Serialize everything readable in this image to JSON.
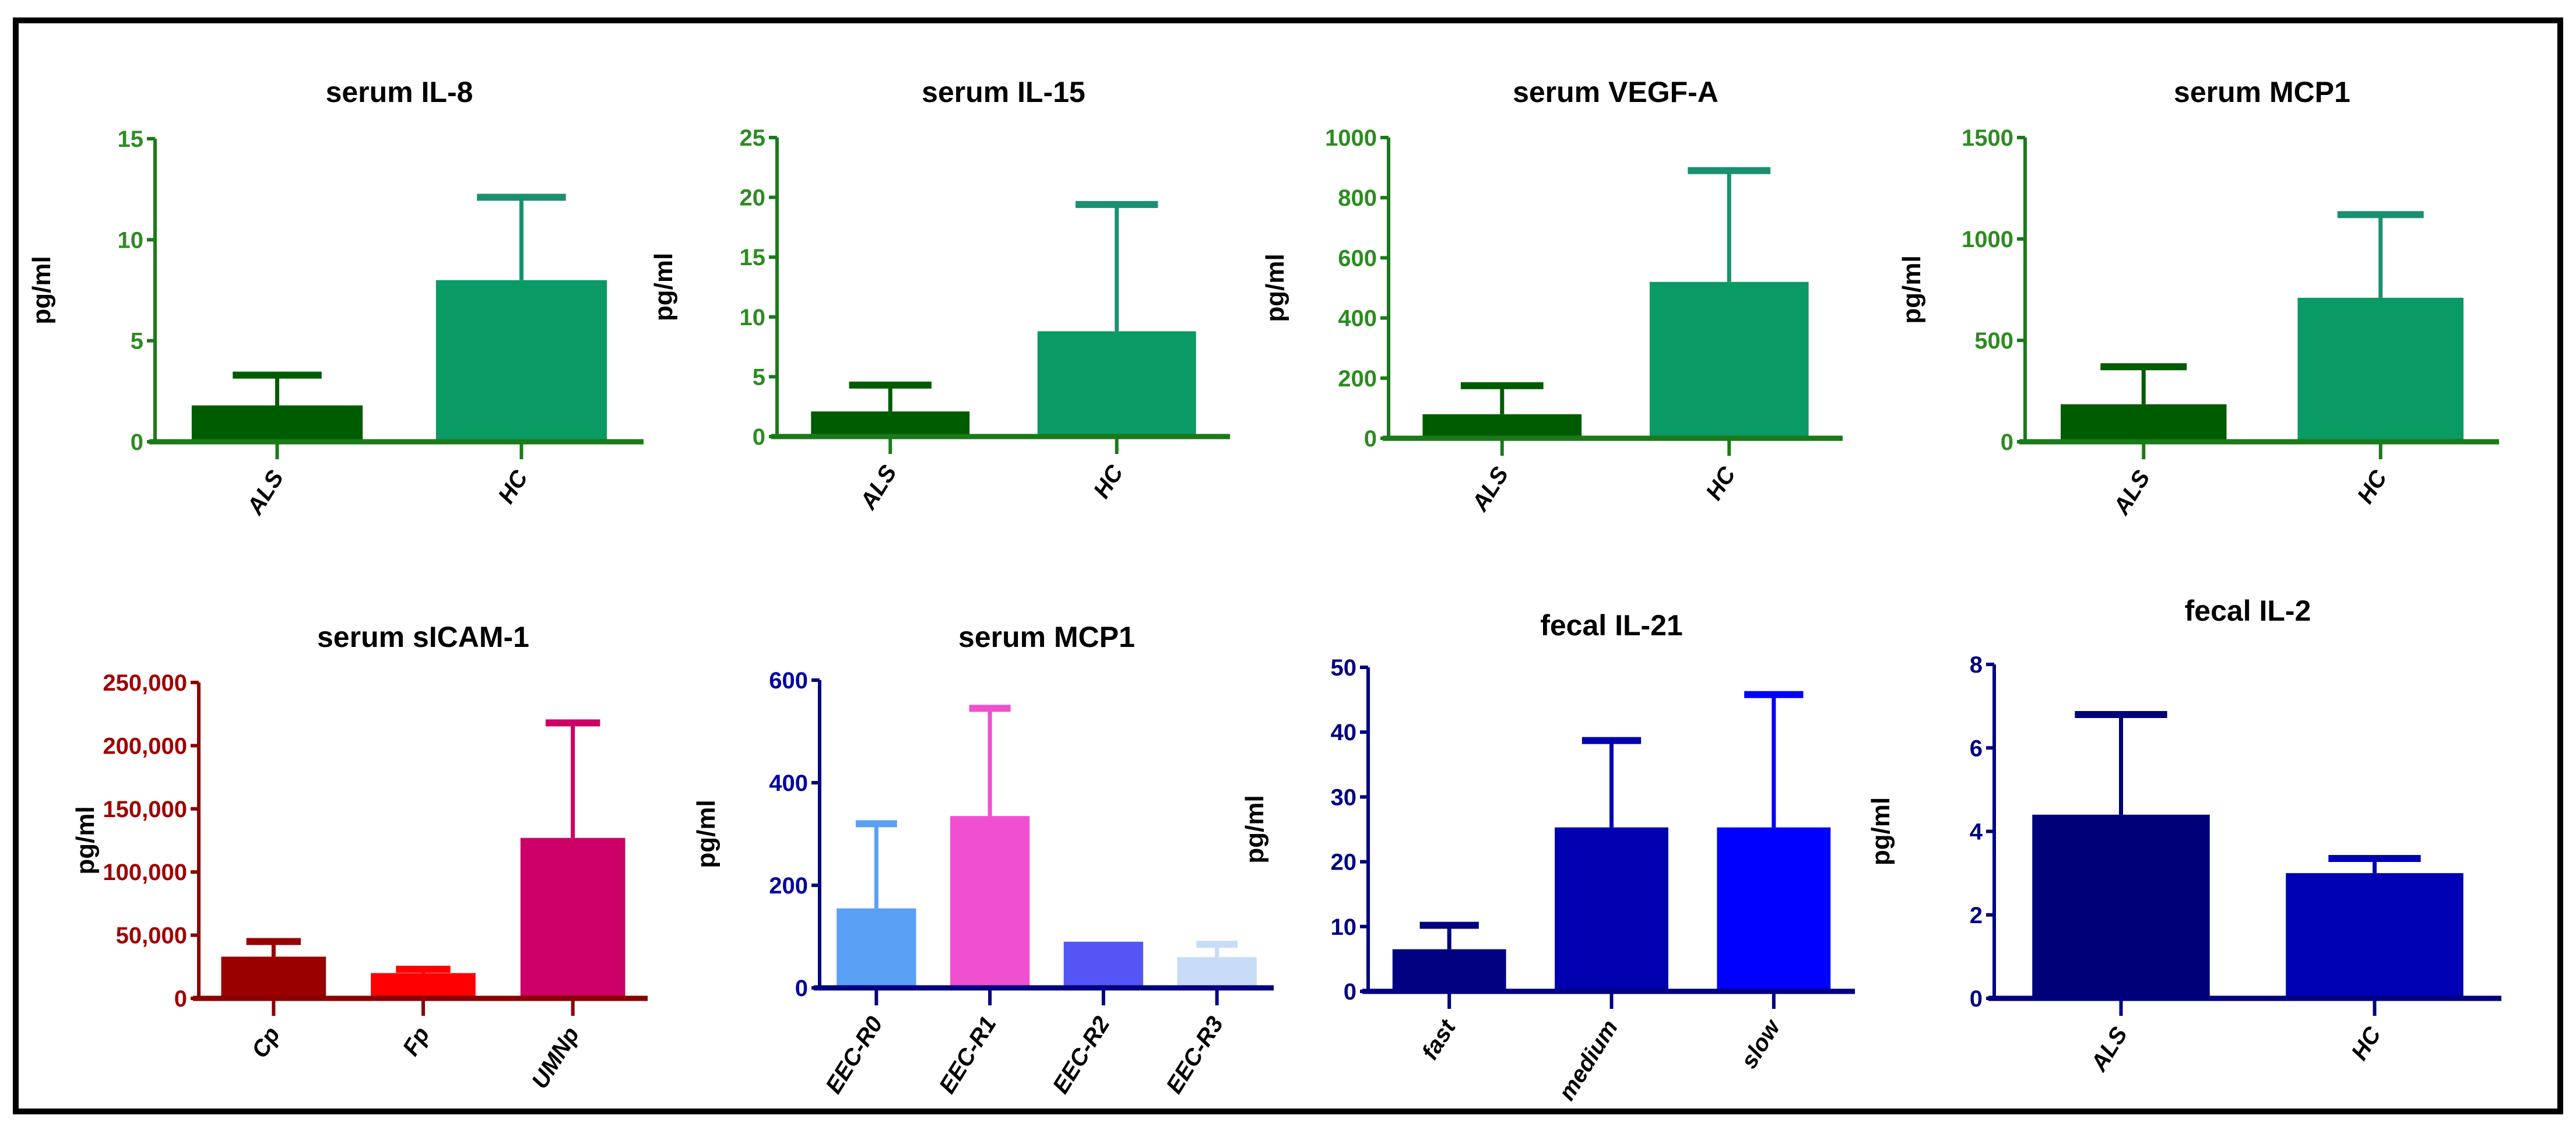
{
  "chart_data": [
    {
      "type": "bar",
      "title": "serum IL-8",
      "ylabel": "pg/ml",
      "ylim": [
        0,
        15
      ],
      "yticks": [
        0,
        5,
        10,
        15
      ],
      "axis_color": "#1a7a1a",
      "tick_label_color": "#2e8b22",
      "categories": [
        "ALS",
        "HC"
      ],
      "values": [
        1.8,
        8.0
      ],
      "error_upper": [
        3.3,
        12.1
      ],
      "colors": [
        "#005c00",
        "#0a9a64"
      ],
      "error_colors": [
        "#005c00",
        "#1a9070"
      ]
    },
    {
      "type": "bar",
      "title": "serum IL-15",
      "ylabel": "pg/ml",
      "ylim": [
        0,
        25
      ],
      "yticks": [
        0,
        5,
        10,
        15,
        20,
        25
      ],
      "axis_color": "#1a7a1a",
      "tick_label_color": "#2e8b22",
      "categories": [
        "ALS",
        "HC"
      ],
      "values": [
        2.1,
        8.8
      ],
      "error_upper": [
        4.3,
        19.4
      ],
      "colors": [
        "#005c00",
        "#0a9a64"
      ],
      "error_colors": [
        "#005c00",
        "#1a9070"
      ]
    },
    {
      "type": "bar",
      "title": "serum VEGF-A",
      "ylabel": "pg/ml",
      "ylim": [
        0,
        1000
      ],
      "yticks": [
        0,
        200,
        400,
        600,
        800,
        1000
      ],
      "axis_color": "#1a7a1a",
      "tick_label_color": "#2e8b22",
      "categories": [
        "ALS",
        "HC"
      ],
      "values": [
        80,
        520
      ],
      "error_upper": [
        175,
        890
      ],
      "colors": [
        "#005c00",
        "#0a9a64"
      ],
      "error_colors": [
        "#005c00",
        "#1a9070"
      ]
    },
    {
      "type": "bar",
      "title": "serum MCP1",
      "ylabel": "pg/ml",
      "ylim": [
        0,
        1500
      ],
      "yticks": [
        0,
        500,
        1000,
        1500
      ],
      "axis_color": "#1a7a1a",
      "tick_label_color": "#2e8b22",
      "categories": [
        "ALS",
        "HC"
      ],
      "values": [
        185,
        710
      ],
      "error_upper": [
        370,
        1120
      ],
      "colors": [
        "#005c00",
        "#0a9a64"
      ],
      "error_colors": [
        "#005c00",
        "#1a9070"
      ]
    },
    {
      "type": "bar",
      "title": "serum sICAM-1",
      "ylabel": "pg/ml",
      "ylim": [
        0,
        250000
      ],
      "yticks": [
        0,
        50000,
        100000,
        150000,
        200000,
        250000
      ],
      "ytick_labels": [
        "0",
        "50,000",
        "100,000",
        "150,000",
        "200,000",
        "250,000"
      ],
      "axis_color": "#8b0000",
      "tick_label_color": "#a00000",
      "categories": [
        "Cp",
        "Fp",
        "UMNp"
      ],
      "values": [
        33000,
        20000,
        127000
      ],
      "error_upper": [
        45000,
        23000,
        218000
      ],
      "colors": [
        "#990000",
        "#ff0000",
        "#cc0066"
      ],
      "error_colors": [
        "#990000",
        "#ff0000",
        "#cc0066"
      ]
    },
    {
      "type": "bar",
      "title": "serum MCP1",
      "ylabel": "pg/ml",
      "ylim": [
        0,
        600
      ],
      "yticks": [
        0,
        200,
        400,
        600
      ],
      "axis_color": "#000080",
      "tick_label_color": "#0000a0",
      "categories": [
        "EEC-R0",
        "EEC-R1",
        "EEC-R2",
        "EEC-R3"
      ],
      "values": [
        155,
        335,
        90,
        60
      ],
      "error_upper": [
        320,
        545,
        null,
        85
      ],
      "colors": [
        "#5aa0f5",
        "#f050d0",
        "#5555f5",
        "#c8dcf8"
      ],
      "error_colors": [
        "#5aa0f5",
        "#f050d0",
        "#5555f5",
        "#c8dcf8"
      ]
    },
    {
      "type": "bar",
      "title": "fecal IL-21",
      "ylabel": "pg/ml",
      "ylim": [
        0,
        50
      ],
      "yticks": [
        0,
        10,
        20,
        30,
        40,
        50
      ],
      "axis_color": "#000080",
      "tick_label_color": "#000080",
      "categories": [
        "fast",
        "medium",
        "slow"
      ],
      "values": [
        6.5,
        25.3,
        25.3
      ],
      "error_upper": [
        10.2,
        38.7,
        45.8
      ],
      "colors": [
        "#000080",
        "#0000b0",
        "#0000ff"
      ],
      "error_colors": [
        "#000080",
        "#0000b0",
        "#0000ff"
      ]
    },
    {
      "type": "bar",
      "title": "fecal IL-2",
      "ylabel": "pg/ml",
      "ylim": [
        0,
        8
      ],
      "yticks": [
        0,
        2,
        4,
        6,
        8
      ],
      "axis_color": "#000080",
      "tick_label_color": "#000080",
      "categories": [
        "ALS",
        "HC"
      ],
      "values": [
        4.4,
        3.0
      ],
      "error_upper": [
        6.8,
        3.35
      ],
      "colors": [
        "#000078",
        "#0000b4"
      ],
      "error_colors": [
        "#000078",
        "#0000b4"
      ]
    }
  ]
}
